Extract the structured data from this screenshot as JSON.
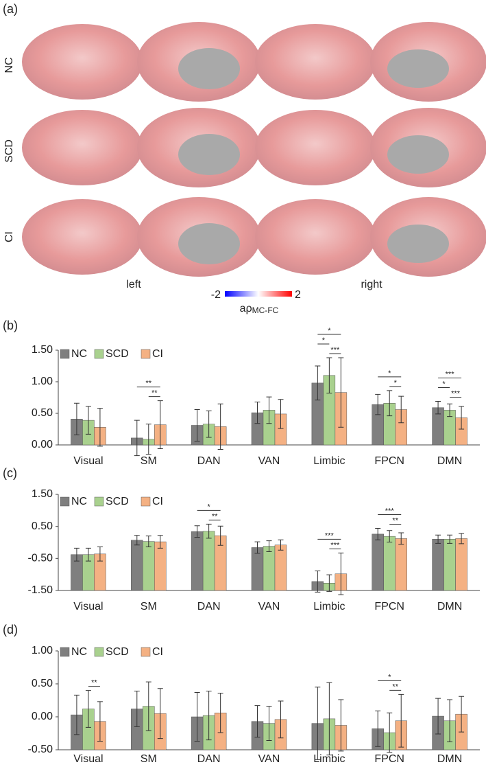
{
  "panel_a": {
    "label": "(a)",
    "rows": [
      "NC",
      "SCD",
      "CI"
    ],
    "left": "left",
    "right": "right",
    "colorbar": {
      "min": "-2",
      "max": "2",
      "label": "aρ",
      "label_sub": "MC-FC"
    }
  },
  "chart_data": [
    {
      "type": "bar",
      "panel": "(b)",
      "categories": [
        "Visual",
        "SM",
        "DAN",
        "VAN",
        "Limbic",
        "FPCN",
        "DMN"
      ],
      "series": [
        {
          "name": "NC",
          "color": "#7f7f7f",
          "values": [
            0.41,
            0.11,
            0.31,
            0.51,
            0.98,
            0.64,
            0.59
          ],
          "errors": [
            0.25,
            0.28,
            0.25,
            0.17,
            0.27,
            0.16,
            0.1
          ]
        },
        {
          "name": "SCD",
          "color": "#a9d18e",
          "values": [
            0.39,
            0.09,
            0.33,
            0.55,
            1.1,
            0.66,
            0.55
          ],
          "errors": [
            0.22,
            0.24,
            0.21,
            0.21,
            0.28,
            0.2,
            0.1
          ]
        },
        {
          "name": "CI",
          "color": "#f4b183",
          "values": [
            0.28,
            0.32,
            0.29,
            0.49,
            0.83,
            0.56,
            0.43
          ],
          "errors": [
            0.3,
            0.38,
            0.36,
            0.23,
            0.55,
            0.21,
            0.18
          ]
        }
      ],
      "ylim": [
        0,
        1.5
      ],
      "yticks": [
        {
          "value": 0,
          "label": "0.00"
        },
        {
          "value": 0.5,
          "label": "0.50"
        },
        {
          "value": 1,
          "label": "1.00"
        },
        {
          "value": 1.5,
          "label": "1.50"
        }
      ],
      "annotations": [
        {
          "category": "SM",
          "from": "NC",
          "to": "CI",
          "text": "**"
        },
        {
          "category": "SM",
          "from": "SCD",
          "to": "CI",
          "text": "**"
        },
        {
          "category": "Limbic",
          "from": "NC",
          "to": "CI",
          "text": "*"
        },
        {
          "category": "Limbic",
          "from": "NC",
          "to": "SCD",
          "text": "*"
        },
        {
          "category": "Limbic",
          "from": "SCD",
          "to": "CI",
          "text": "***"
        },
        {
          "category": "FPCN",
          "from": "NC",
          "to": "CI",
          "text": "*"
        },
        {
          "category": "FPCN",
          "from": "SCD",
          "to": "CI",
          "text": "*"
        },
        {
          "category": "DMN",
          "from": "NC",
          "to": "CI",
          "text": "***"
        },
        {
          "category": "DMN",
          "from": "NC",
          "to": "SCD",
          "text": "*"
        },
        {
          "category": "DMN",
          "from": "SCD",
          "to": "CI",
          "text": "***"
        }
      ]
    },
    {
      "type": "bar",
      "panel": "(c)",
      "categories": [
        "Visual",
        "SM",
        "DAN",
        "VAN",
        "Limbic",
        "FPCN",
        "DMN"
      ],
      "series": [
        {
          "name": "NC",
          "color": "#7f7f7f",
          "values": [
            -0.38,
            0.07,
            0.34,
            -0.16,
            -1.22,
            0.26,
            0.1
          ],
          "errors": [
            0.2,
            0.15,
            0.18,
            0.18,
            0.33,
            0.18,
            0.13
          ]
        },
        {
          "name": "SCD",
          "color": "#a9d18e",
          "values": [
            -0.38,
            0.03,
            0.35,
            -0.12,
            -1.27,
            0.19,
            0.1
          ],
          "errors": [
            0.2,
            0.17,
            0.22,
            0.17,
            0.26,
            0.18,
            0.13
          ]
        },
        {
          "name": "CI",
          "color": "#f4b183",
          "values": [
            -0.36,
            0.02,
            0.21,
            -0.08,
            -0.98,
            0.12,
            0.12
          ],
          "errors": [
            0.22,
            0.2,
            0.3,
            0.16,
            0.65,
            0.18,
            0.16
          ]
        }
      ],
      "ylim": [
        -1.5,
        1.5
      ],
      "yticks": [
        {
          "value": -1.5,
          "label": "-1.50"
        },
        {
          "value": -0.5,
          "label": "-0.50"
        },
        {
          "value": 0.5,
          "label": "0.50"
        },
        {
          "value": 1.5,
          "label": "1.50"
        }
      ],
      "annotations": [
        {
          "category": "DAN",
          "from": "NC",
          "to": "CI",
          "text": "*"
        },
        {
          "category": "DAN",
          "from": "SCD",
          "to": "CI",
          "text": "**"
        },
        {
          "category": "Limbic",
          "from": "NC",
          "to": "CI",
          "text": "***"
        },
        {
          "category": "Limbic",
          "from": "SCD",
          "to": "CI",
          "text": "***"
        },
        {
          "category": "FPCN",
          "from": "NC",
          "to": "CI",
          "text": "***"
        },
        {
          "category": "FPCN",
          "from": "SCD",
          "to": "CI",
          "text": "**"
        }
      ]
    },
    {
      "type": "bar",
      "panel": "(d)",
      "categories": [
        "Visual",
        "SM",
        "DAN",
        "VAN",
        "Limbic",
        "FPCN",
        "DMN"
      ],
      "series": [
        {
          "name": "NC",
          "color": "#7f7f7f",
          "values": [
            0.03,
            0.12,
            0,
            -0.07,
            -0.1,
            -0.18,
            0.01
          ],
          "errors": [
            0.3,
            0.27,
            0.37,
            0.24,
            0.55,
            0.27,
            0.27
          ]
        },
        {
          "name": "SCD",
          "color": "#a9d18e",
          "values": [
            0.12,
            0.16,
            0.02,
            -0.1,
            -0.03,
            -0.24,
            -0.06
          ],
          "errors": [
            0.28,
            0.37,
            0.37,
            0.26,
            0.55,
            0.3,
            0.32
          ]
        },
        {
          "name": "CI",
          "color": "#f4b183",
          "values": [
            -0.07,
            0.05,
            0.06,
            -0.04,
            -0.13,
            -0.06,
            0.04
          ],
          "errors": [
            0.3,
            0.38,
            0.3,
            0.28,
            0.39,
            0.4,
            0.27
          ]
        }
      ],
      "ylim": [
        -0.5,
        1
      ],
      "yticks": [
        {
          "value": -0.5,
          "label": "-0.50"
        },
        {
          "value": 0,
          "label": "0.00"
        },
        {
          "value": 0.5,
          "label": "0.50"
        },
        {
          "value": 1,
          "label": "1.00"
        }
      ],
      "annotations": [
        {
          "category": "Visual",
          "from": "SCD",
          "to": "CI",
          "text": "**"
        },
        {
          "category": "FPCN",
          "from": "NC",
          "to": "CI",
          "text": "*"
        },
        {
          "category": "FPCN",
          "from": "SCD",
          "to": "CI",
          "text": "**"
        }
      ]
    }
  ]
}
